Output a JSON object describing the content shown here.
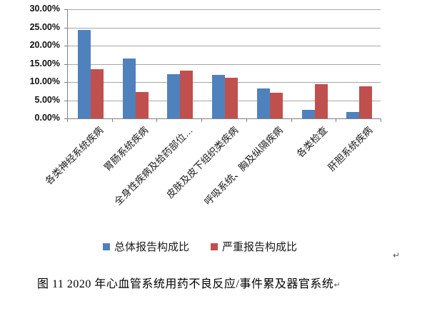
{
  "figure": {
    "caption": "图 11  2020 年心血管系统用药不良反应/事件累及器官系统",
    "caption_paragraph_mark": "↵",
    "floating_paragraph_mark": "↵"
  },
  "chart_data": {
    "type": "bar",
    "title": "",
    "xlabel": "",
    "ylabel": "",
    "categories": [
      "各类神经系统疾病",
      "胃肠系统疾病",
      "全身性疾病及给药部位…",
      "皮肤及皮下组织类疾病",
      "呼吸系统、胸及纵隔疾病",
      "各类检查",
      "肝胆系统疾病"
    ],
    "series": [
      {
        "name": "总体报告构成比",
        "color": "#4F81BD",
        "values": [
          24.4,
          16.4,
          12.1,
          12.0,
          8.2,
          2.4,
          1.7
        ]
      },
      {
        "name": "严重报告构成比",
        "color": "#C0504D",
        "values": [
          13.5,
          7.2,
          13.1,
          11.2,
          7.1,
          9.5,
          8.9
        ]
      }
    ],
    "values_unit": "%",
    "ylim": [
      0,
      30
    ],
    "y_tick_step": 5,
    "y_tick_labels": [
      "30.00%",
      "25.00%",
      "20.00%",
      "15.00%",
      "10.00%",
      "5.00%",
      "0.00%"
    ],
    "grid": true,
    "legend_position": "bottom"
  },
  "colors": {
    "gridline": "#a6a6a6",
    "axis": "#808080",
    "series_blue": "#4F81BD",
    "series_red": "#C0504D"
  }
}
